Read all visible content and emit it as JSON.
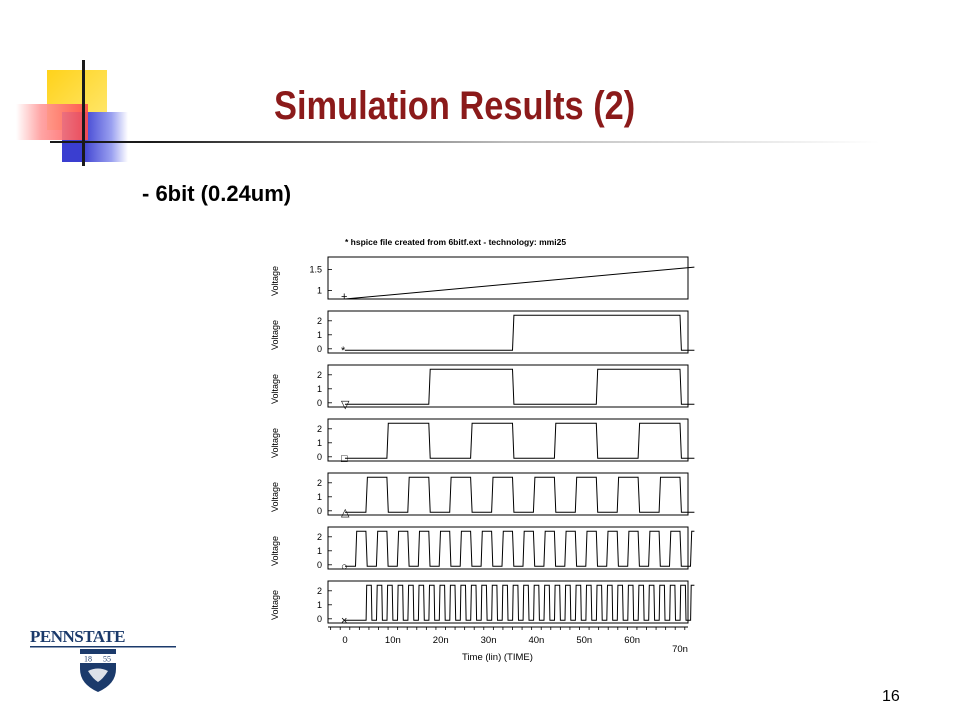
{
  "slide": {
    "title": "Simulation Results (2)",
    "subtitle": "- 6bit (0.24um)",
    "page_number": "16",
    "title_color": "#8b1a1a"
  },
  "logo": {
    "text": "PENNSTATE",
    "year_left": "18",
    "year_right": "55",
    "color": "#1b3a6b"
  },
  "chart_data": {
    "type": "line",
    "title": "* hspice file created from 6bitf.ext - technology: mmi25",
    "xlabel": "Time (lin) (TIME)",
    "xlim": [
      0,
      70
    ],
    "x_unit": "ns",
    "x_ticks": [
      "0",
      "10n",
      "20n",
      "30n",
      "40n",
      "50n",
      "60n",
      "70n"
    ],
    "ylabel": "Voltage",
    "panels": [
      {
        "marker": "+",
        "ylim": [
          0.8,
          1.8
        ],
        "y_ticks": [
          "1.5",
          "1"
        ],
        "y_tick_values": [
          1.5,
          1.0
        ],
        "kind": "ramp",
        "ramp": [
          {
            "t": 0,
            "v": 0.8
          },
          {
            "t": 73,
            "v": 1.56
          }
        ]
      },
      {
        "marker": "*",
        "ylim": [
          -0.3,
          2.7
        ],
        "y_ticks": [
          "2",
          "1",
          "0"
        ],
        "y_tick_values": [
          2,
          1,
          0
        ],
        "kind": "square",
        "period": 70,
        "delay": 35,
        "high": 2.4,
        "low": -0.1
      },
      {
        "marker": "▽",
        "ylim": [
          -0.3,
          2.7
        ],
        "y_ticks": [
          "2",
          "1",
          "0"
        ],
        "y_tick_values": [
          2,
          1,
          0
        ],
        "kind": "square",
        "period": 35,
        "delay": 17.5,
        "high": 2.4,
        "low": -0.1
      },
      {
        "marker": "□",
        "ylim": [
          -0.3,
          2.7
        ],
        "y_ticks": [
          "2",
          "1",
          "0"
        ],
        "y_tick_values": [
          2,
          1,
          0
        ],
        "kind": "square",
        "period": 17.5,
        "delay": 8.75,
        "high": 2.4,
        "low": -0.1
      },
      {
        "marker": "△",
        "ylim": [
          -0.3,
          2.7
        ],
        "y_ticks": [
          "2",
          "1",
          "0"
        ],
        "y_tick_values": [
          2,
          1,
          0
        ],
        "kind": "square",
        "period": 8.75,
        "delay": 4.375,
        "high": 2.4,
        "low": -0.1
      },
      {
        "marker": "○",
        "ylim": [
          -0.3,
          2.7
        ],
        "y_ticks": [
          "2",
          "1",
          "0"
        ],
        "y_tick_values": [
          2,
          1,
          0
        ],
        "kind": "square",
        "period": 4.375,
        "delay": 2.1875,
        "high": 2.4,
        "low": -0.1
      },
      {
        "marker": "×",
        "ylim": [
          -0.3,
          2.7
        ],
        "y_ticks": [
          "2",
          "1",
          "0"
        ],
        "y_tick_values": [
          2,
          1,
          0
        ],
        "kind": "square",
        "period": 2.1875,
        "delay": 4.4,
        "high": 2.4,
        "low": -0.1
      }
    ]
  }
}
